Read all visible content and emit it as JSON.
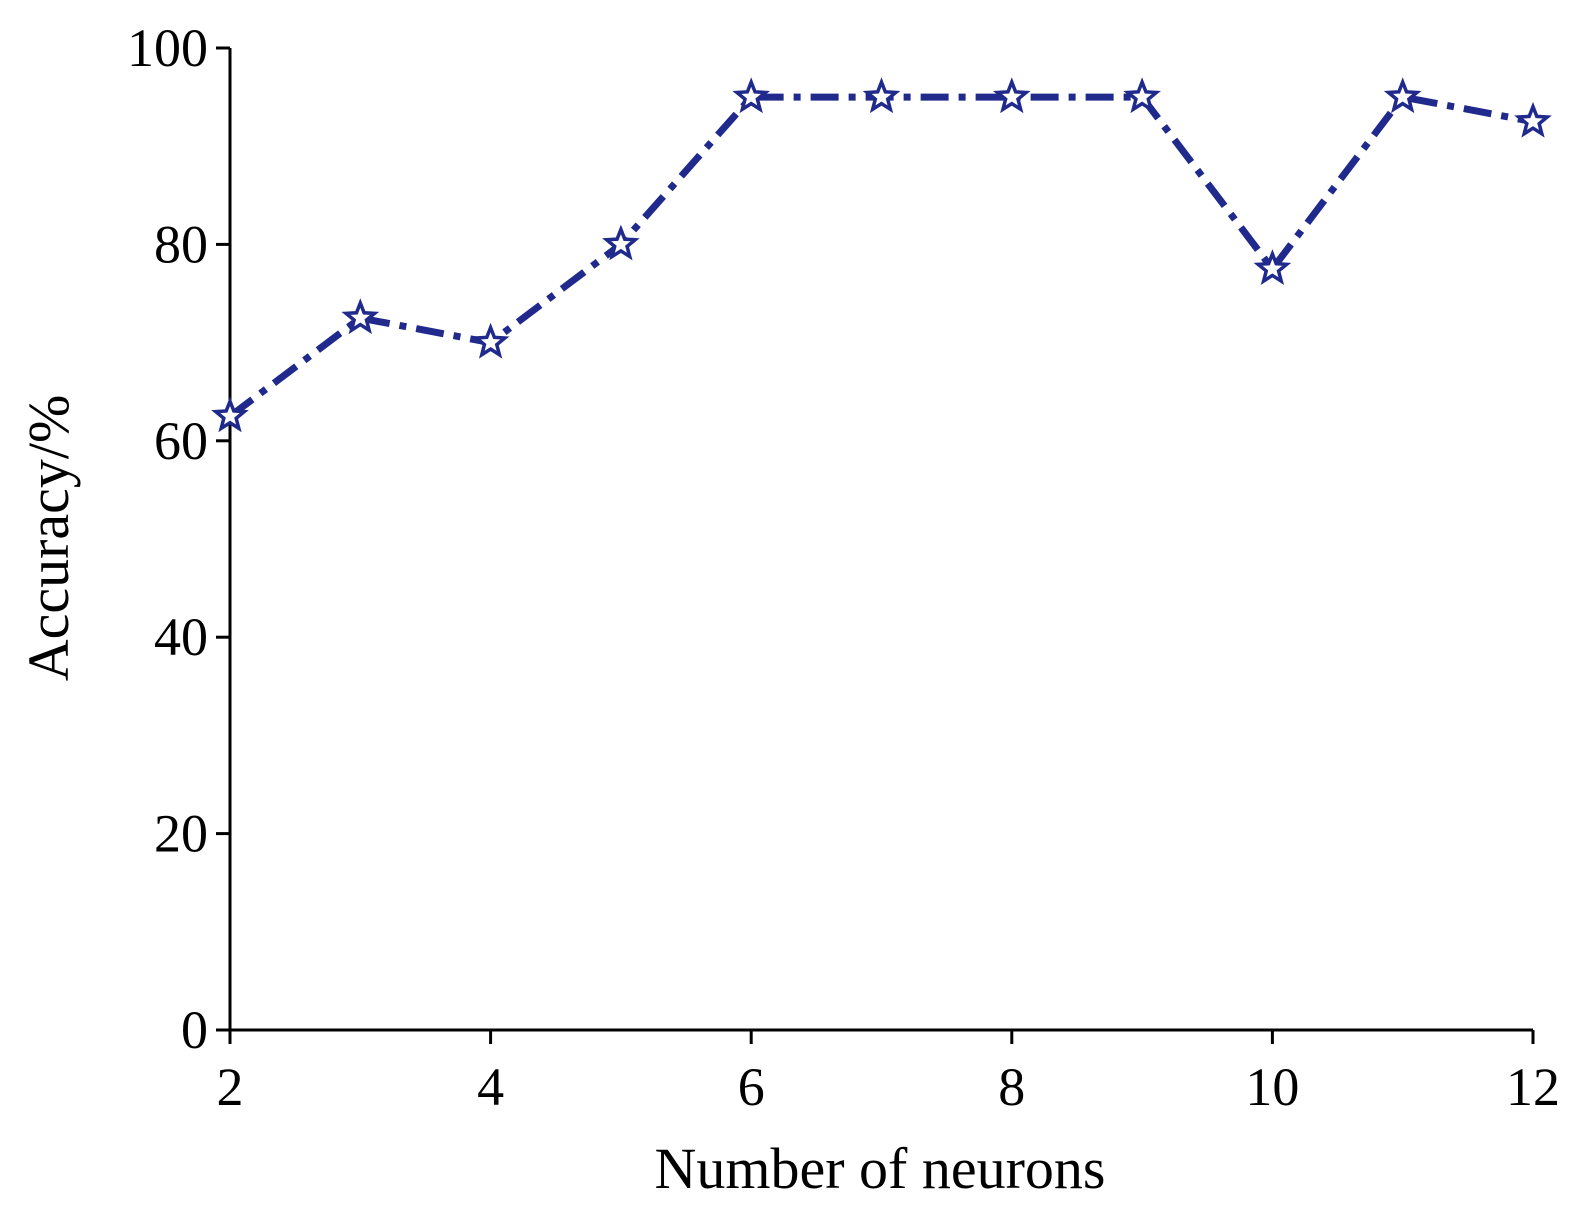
{
  "chart_data": {
    "type": "line",
    "title": "",
    "xlabel": "Number of neurons",
    "ylabel": "Accuracy/%",
    "xlim": [
      2,
      12
    ],
    "ylim": [
      0,
      100
    ],
    "x_ticks": [
      2,
      4,
      6,
      8,
      10,
      12
    ],
    "y_ticks": [
      0,
      20,
      40,
      60,
      80,
      100
    ],
    "grid": false,
    "legend": "none",
    "series": [
      {
        "color": "#1f2a8c",
        "line_style": "dash-dot",
        "marker": "star-icon",
        "x": [
          2,
          3,
          4,
          5,
          6,
          7,
          8,
          9,
          10,
          11,
          12
        ],
        "y": [
          62.5,
          72.5,
          70,
          80,
          95,
          95,
          95,
          95,
          77.5,
          95,
          92.5
        ]
      }
    ]
  }
}
